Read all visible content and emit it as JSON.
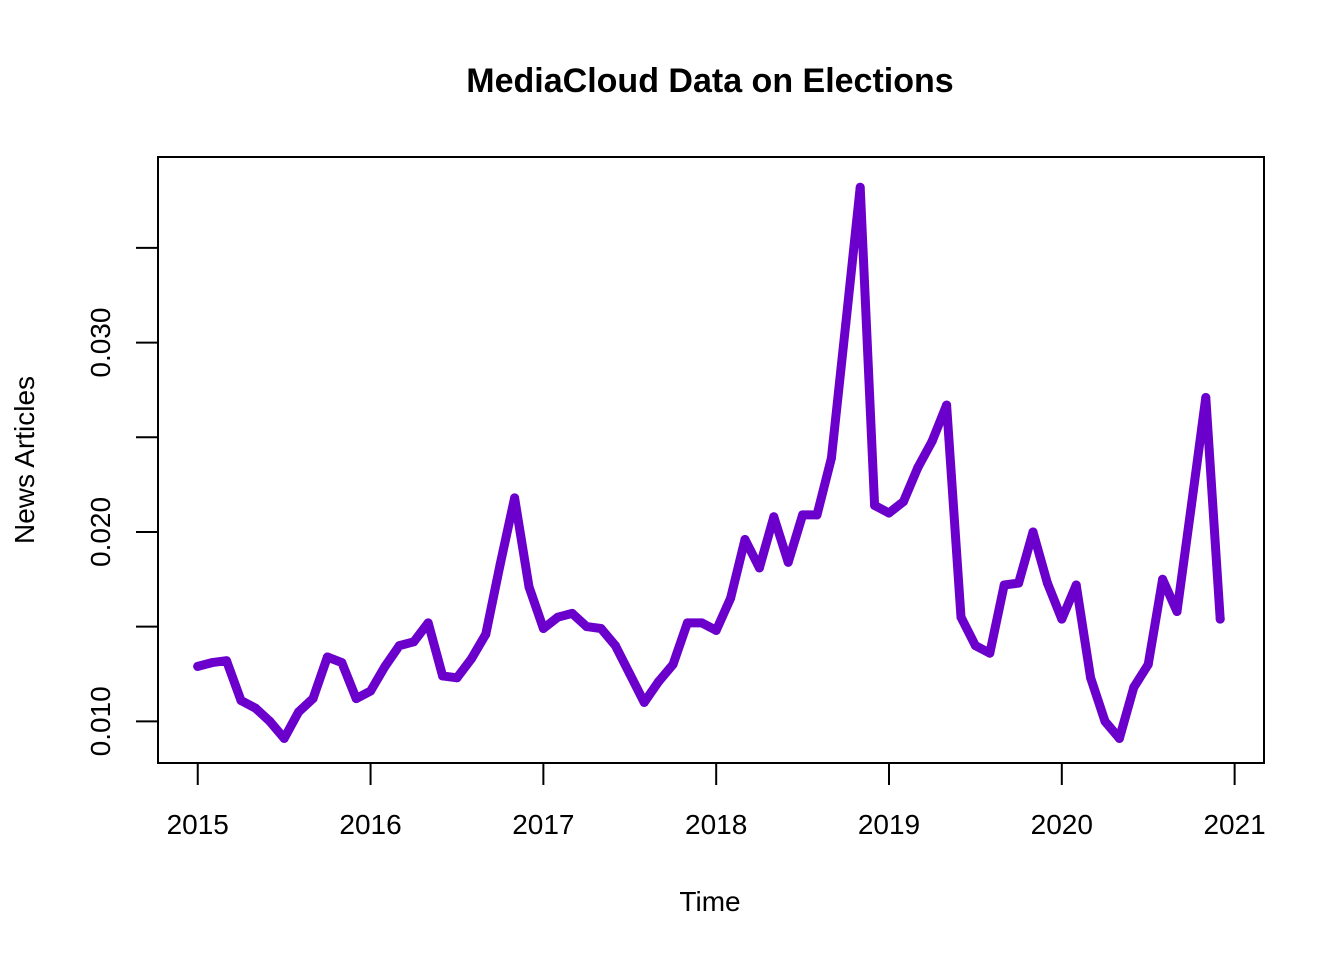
{
  "chart_data": {
    "type": "line",
    "title": "MediaCloud Data on Elections",
    "xlabel": "Time",
    "ylabel": "News Articles",
    "xlim": [
      2014.77,
      2021.17
    ],
    "ylim": [
      0.0078,
      0.0398
    ],
    "x_ticks": [
      2015,
      2016,
      2017,
      2018,
      2019,
      2020,
      2021
    ],
    "x_tick_labels": [
      "2015",
      "2016",
      "2017",
      "2018",
      "2019",
      "2020",
      "2021"
    ],
    "y_ticks": [
      0.01,
      0.015,
      0.02,
      0.025,
      0.03,
      0.035
    ],
    "y_tick_labels": [
      "0.010",
      "",
      "0.020",
      "",
      "0.030",
      ""
    ],
    "grid": false,
    "line_color": "#6B00CC",
    "series": [
      {
        "x": [
          "2015-01",
          "2015-02",
          "2015-03",
          "2015-04",
          "2015-05",
          "2015-06",
          "2015-07",
          "2015-08",
          "2015-09",
          "2015-10",
          "2015-11",
          "2015-12",
          "2016-01",
          "2016-02",
          "2016-03",
          "2016-04",
          "2016-05",
          "2016-06",
          "2016-07",
          "2016-08",
          "2016-09",
          "2016-10",
          "2016-11",
          "2016-12",
          "2017-01",
          "2017-02",
          "2017-03",
          "2017-04",
          "2017-05",
          "2017-06",
          "2017-07",
          "2017-08",
          "2017-09",
          "2017-10",
          "2017-11",
          "2017-12",
          "2018-01",
          "2018-02",
          "2018-03",
          "2018-04",
          "2018-05",
          "2018-06",
          "2018-07",
          "2018-08",
          "2018-09",
          "2018-10",
          "2018-11",
          "2018-12",
          "2019-01",
          "2019-02",
          "2019-03",
          "2019-04",
          "2019-05",
          "2019-06",
          "2019-07",
          "2019-08",
          "2019-09",
          "2019-10",
          "2019-11",
          "2019-12",
          "2020-01",
          "2020-02",
          "2020-03",
          "2020-04",
          "2020-05",
          "2020-06",
          "2020-07",
          "2020-08",
          "2020-09",
          "2020-10",
          "2020-11",
          "2020-12"
        ],
        "values": [
          0.0129,
          0.0131,
          0.0132,
          0.0111,
          0.0107,
          0.01,
          0.0091,
          0.0105,
          0.0112,
          0.0134,
          0.0131,
          0.0112,
          0.0116,
          0.0129,
          0.014,
          0.0142,
          0.0152,
          0.0124,
          0.0123,
          0.0133,
          0.0146,
          0.0183,
          0.0218,
          0.0171,
          0.0149,
          0.0155,
          0.0157,
          0.015,
          0.0149,
          0.014,
          0.0125,
          0.011,
          0.0121,
          0.013,
          0.0152,
          0.0152,
          0.0148,
          0.0165,
          0.0196,
          0.0181,
          0.0208,
          0.0184,
          0.0209,
          0.0209,
          0.0239,
          0.031,
          0.0382,
          0.0214,
          0.021,
          0.0216,
          0.0234,
          0.0248,
          0.0267,
          0.0155,
          0.014,
          0.0136,
          0.0172,
          0.0173,
          0.02,
          0.0173,
          0.0154,
          0.0172,
          0.0123,
          0.01,
          0.0091,
          0.0118,
          0.013,
          0.0175,
          0.0158,
          0.0214,
          0.0271,
          0.0154
        ]
      }
    ]
  }
}
